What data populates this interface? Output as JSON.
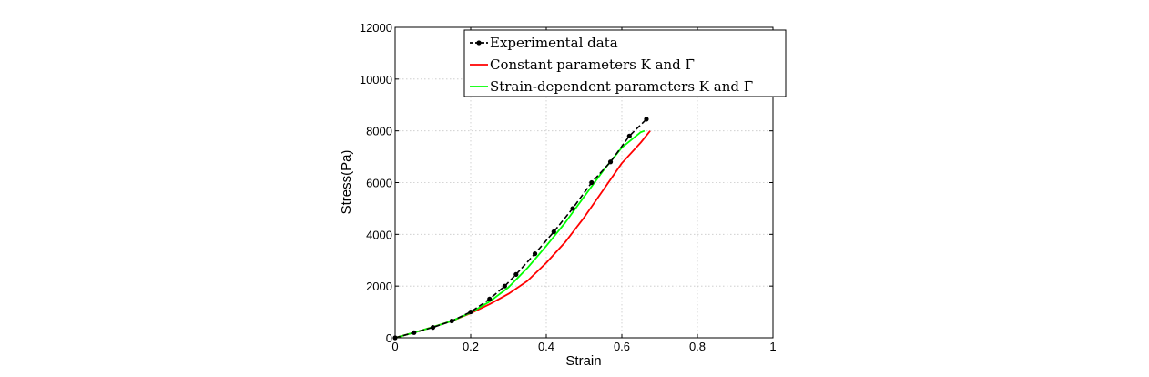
{
  "chart_data": {
    "type": "line",
    "title": "",
    "xlabel": "Strain",
    "ylabel": "Stress(Pa)",
    "xlim": [
      0,
      1
    ],
    "ylim": [
      0,
      12000
    ],
    "x_ticks": [
      0,
      0.2,
      0.4,
      0.6,
      0.8,
      1
    ],
    "x_tick_labels": [
      "0",
      "0.2",
      "0.4",
      "0.6",
      "0.8",
      "1"
    ],
    "y_ticks": [
      0,
      2000,
      4000,
      6000,
      8000,
      10000,
      12000
    ],
    "y_tick_labels": [
      "0",
      "2000",
      "4000",
      "6000",
      "8000",
      "10000",
      "12000"
    ],
    "grid": true,
    "legend_position": "top-right",
    "series": [
      {
        "name": "Experimental data",
        "legend_label": "Experimental data",
        "color": "#000000",
        "style": "dashed-markers",
        "x": [
          0,
          0.05,
          0.1,
          0.15,
          0.2,
          0.25,
          0.29,
          0.32,
          0.37,
          0.42,
          0.47,
          0.52,
          0.57,
          0.62,
          0.665
        ],
        "y": [
          0,
          200,
          400,
          650,
          1000,
          1500,
          2000,
          2450,
          3250,
          4100,
          5000,
          6000,
          6800,
          7800,
          8450
        ]
      },
      {
        "name": "Constant parameters K and Γ̄",
        "legend_label": "Constant parameters K and Γ̄",
        "color": "#ff0000",
        "style": "solid",
        "x": [
          0,
          0.05,
          0.1,
          0.15,
          0.2,
          0.25,
          0.3,
          0.35,
          0.4,
          0.45,
          0.5,
          0.55,
          0.6,
          0.65,
          0.675
        ],
        "y": [
          0,
          200,
          420,
          650,
          950,
          1300,
          1700,
          2200,
          2900,
          3700,
          4650,
          5700,
          6750,
          7550,
          8000
        ]
      },
      {
        "name": "Strain-dependent parameters K and Γ̄",
        "legend_label": "Strain-dependent parameters K and Γ̄",
        "color": "#00ff00",
        "style": "solid",
        "x": [
          0,
          0.05,
          0.1,
          0.15,
          0.2,
          0.25,
          0.3,
          0.35,
          0.4,
          0.45,
          0.5,
          0.55,
          0.6,
          0.65,
          0.66
        ],
        "y": [
          0,
          200,
          420,
          650,
          970,
          1400,
          1950,
          2700,
          3550,
          4450,
          5450,
          6450,
          7350,
          7950,
          8000
        ]
      }
    ]
  }
}
